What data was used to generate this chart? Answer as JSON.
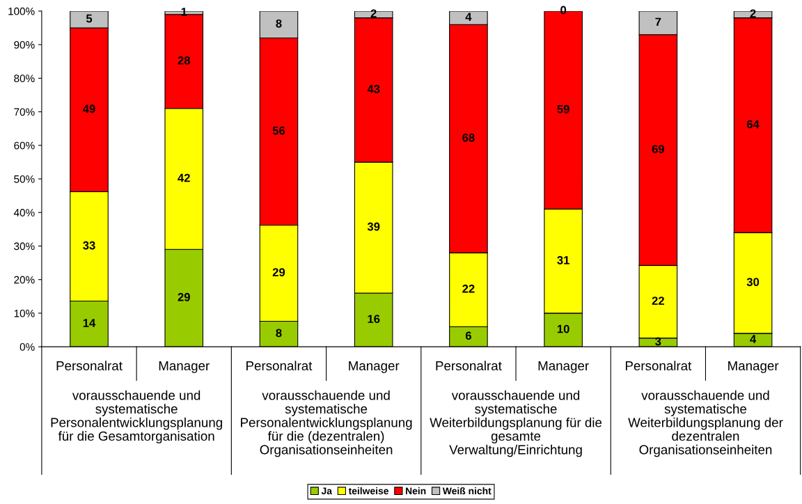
{
  "chart_data": {
    "type": "bar",
    "stacked": true,
    "categories": [
      "Personalrat",
      "Manager",
      "Personalrat",
      "Manager",
      "Personalrat",
      "Manager",
      "Personalrat",
      "Manager"
    ],
    "annotations": [
      "vorausschauende und\nsystematische\nPersonalentwicklungsplanung\nfür die Gesamtorganisation",
      "vorausschauende und\nsystematische\nPersonalentwicklungsplanung\nfür die (dezentralen)\nOrganisationseinheiten",
      "vorausschauende und\nsystematische\nWeiterbildungsplanung für die\ngesamte\nVerwaltung/Einrichtung",
      "vorausschauende und\nsystematische\nWeiterbildungsplanung der\ndezentralen\nOrganisationseinheiten"
    ],
    "series": [
      {
        "name": "Ja",
        "color": "#99cc00",
        "values": [
          13.6,
          29,
          7.6,
          16,
          6,
          10,
          2.6,
          4
        ],
        "value_labels": [
          "14",
          "29",
          "8",
          "16",
          "6",
          "10",
          "3",
          "4"
        ]
      },
      {
        "name": "teilweise",
        "color": "#ffff00",
        "values": [
          32.6,
          42,
          28.6,
          39,
          22,
          31,
          21.6,
          30
        ],
        "value_labels": [
          "33",
          "42",
          "29",
          "39",
          "22",
          "31",
          "22",
          "30"
        ]
      },
      {
        "name": "Nein",
        "color": "#ff0000",
        "values": [
          48.8,
          28,
          55.8,
          43,
          68,
          59,
          68.8,
          64
        ],
        "value_labels": [
          "49",
          "28",
          "56",
          "43",
          "68",
          "59",
          "69",
          "64"
        ]
      },
      {
        "name": "Weiß nicht",
        "color": "#c0c0c0",
        "values": [
          5,
          1,
          8,
          2,
          4,
          0,
          7,
          2
        ],
        "value_labels": [
          "5",
          "1",
          "8",
          "2",
          "4",
          "0",
          "7",
          "2"
        ]
      }
    ],
    "ylim": [
      0,
      100
    ],
    "yticks": [
      {
        "value": 0,
        "label": "0%"
      },
      {
        "value": 10,
        "label": "10%"
      },
      {
        "value": 20,
        "label": "20%"
      },
      {
        "value": 30,
        "label": "30%"
      },
      {
        "value": 40,
        "label": "40%"
      },
      {
        "value": 50,
        "label": "50%"
      },
      {
        "value": 60,
        "label": "60%"
      },
      {
        "value": 70,
        "label": "70%"
      },
      {
        "value": 80,
        "label": "80%"
      },
      {
        "value": 90,
        "label": "90%"
      },
      {
        "value": 100,
        "label": "100%"
      }
    ],
    "grid": false,
    "legend": "bottom"
  }
}
